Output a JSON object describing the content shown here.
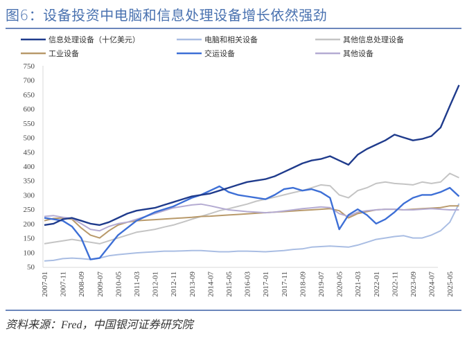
{
  "title": "图6：设备投资中电脑和信息处理设备增长依然强劲",
  "source": "资料来源：Fred，中国银河证券研究院",
  "chart_data": {
    "type": "line",
    "title": "图6：设备投资中电脑和信息处理设备增长依然强劲",
    "xlabel": "",
    "ylabel": "",
    "ylim": [
      50,
      750
    ],
    "yticks": [
      50,
      100,
      150,
      200,
      250,
      300,
      350,
      400,
      450,
      500,
      550,
      600,
      650,
      700,
      750
    ],
    "xtick_labels": [
      "2007-01",
      "2007-11",
      "2008-09",
      "2009-07",
      "2010-05",
      "2011-03",
      "2012-01",
      "2012-11",
      "2013-09",
      "2014-07",
      "2015-05",
      "2016-03",
      "2017-01",
      "2017-11",
      "2018-09",
      "2019-07",
      "2020-05",
      "2021-03",
      "2022-01",
      "2022-11",
      "2023-09",
      "2024-07",
      "2025-05"
    ],
    "grid": false,
    "legend_position": "top",
    "x_months_from_2007_01": [
      0,
      5,
      10,
      15,
      20,
      25,
      30,
      35,
      40,
      45,
      50,
      55,
      60,
      65,
      70,
      75,
      80,
      85,
      90,
      95,
      100,
      105,
      110,
      115,
      120,
      125,
      130,
      135,
      140,
      145,
      150,
      155,
      160,
      165,
      170,
      175,
      180,
      185,
      190,
      195,
      200,
      205,
      210,
      215,
      220,
      225
    ],
    "series": [
      {
        "name": "信息处理设备（十亿美元）",
        "color": "#1f3b8c",
        "values": [
          195,
          200,
          215,
          220,
          210,
          200,
          195,
          205,
          220,
          235,
          245,
          250,
          255,
          265,
          275,
          285,
          295,
          300,
          305,
          315,
          325,
          335,
          345,
          350,
          355,
          365,
          380,
          395,
          410,
          420,
          425,
          435,
          420,
          405,
          440,
          460,
          475,
          490,
          510,
          500,
          490,
          495,
          505,
          535,
          610,
          683
        ]
      },
      {
        "name": "电脑和相关设备",
        "color": "#a9bde3",
        "values": [
          70,
          72,
          78,
          80,
          78,
          75,
          80,
          88,
          92,
          95,
          98,
          100,
          102,
          104,
          104,
          105,
          106,
          106,
          104,
          102,
          102,
          104,
          104,
          103,
          102,
          104,
          106,
          110,
          112,
          118,
          120,
          122,
          120,
          118,
          125,
          135,
          145,
          150,
          155,
          158,
          150,
          150,
          160,
          175,
          205,
          270
        ]
      },
      {
        "name": "其他信息处理设备",
        "color": "#c4c4c4",
        "values": [
          130,
          135,
          140,
          145,
          140,
          135,
          130,
          140,
          150,
          160,
          170,
          175,
          180,
          188,
          195,
          205,
          215,
          225,
          235,
          245,
          252,
          260,
          268,
          278,
          285,
          292,
          300,
          308,
          315,
          325,
          335,
          332,
          300,
          290,
          315,
          325,
          340,
          345,
          340,
          338,
          335,
          345,
          340,
          345,
          375,
          360
        ]
      },
      {
        "name": "工业设备",
        "color": "#b8996a",
        "values": [
          210,
          218,
          220,
          215,
          185,
          160,
          150,
          175,
          195,
          205,
          210,
          212,
          214,
          216,
          218,
          220,
          222,
          225,
          226,
          228,
          230,
          232,
          234,
          236,
          238,
          240,
          242,
          244,
          246,
          248,
          250,
          252,
          245,
          220,
          235,
          242,
          248,
          250,
          250,
          248,
          250,
          252,
          254,
          256,
          262,
          262
        ]
      },
      {
        "name": "交运设备",
        "color": "#3d6fd6",
        "values": [
          220,
          215,
          210,
          190,
          150,
          75,
          80,
          120,
          160,
          185,
          210,
          225,
          240,
          250,
          260,
          275,
          290,
          300,
          315,
          330,
          310,
          300,
          295,
          290,
          285,
          300,
          320,
          325,
          315,
          320,
          310,
          290,
          180,
          230,
          250,
          230,
          200,
          215,
          240,
          270,
          290,
          300,
          300,
          310,
          325,
          295
        ]
      },
      {
        "name": "其他设备",
        "color": "#b4abd2",
        "values": [
          225,
          228,
          222,
          218,
          200,
          180,
          175,
          190,
          200,
          205,
          215,
          225,
          235,
          245,
          255,
          260,
          265,
          268,
          262,
          255,
          248,
          245,
          242,
          240,
          238,
          240,
          244,
          248,
          252,
          255,
          258,
          256,
          235,
          225,
          240,
          245,
          248,
          250,
          250,
          248,
          248,
          250,
          252,
          250,
          248,
          248
        ]
      }
    ]
  }
}
